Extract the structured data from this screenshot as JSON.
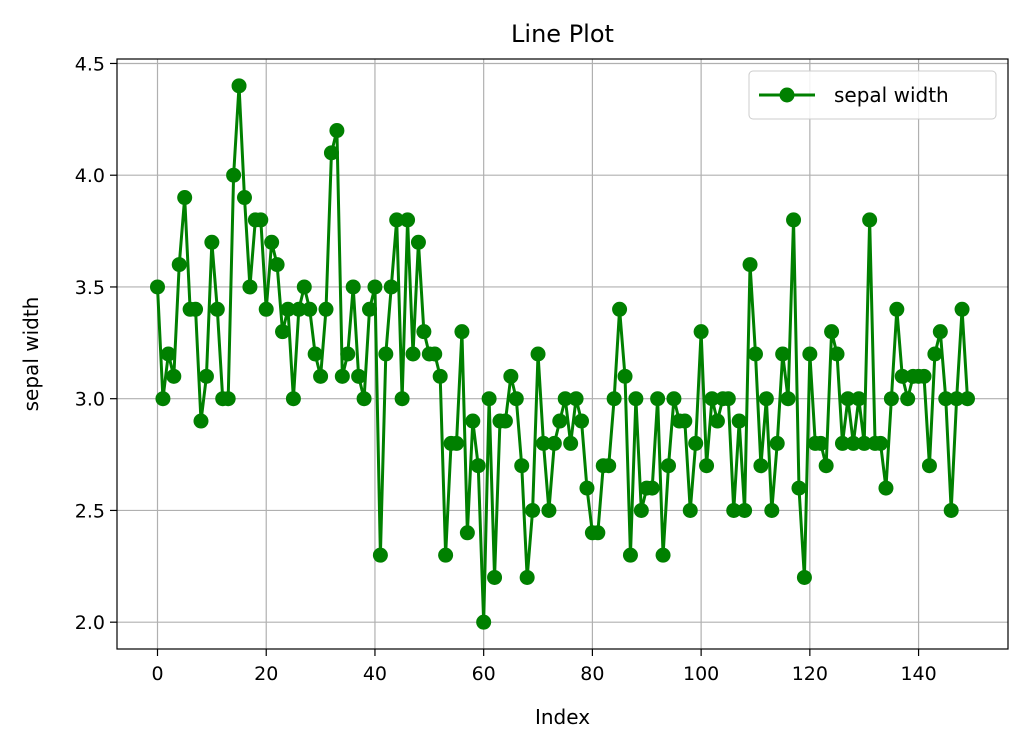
{
  "chart_data": {
    "type": "line",
    "title": "Line Plot",
    "xlabel": "Index",
    "ylabel": "sepal width",
    "xlim": [
      -7.45,
      156.45
    ],
    "ylim": [
      1.88,
      4.52
    ],
    "xticks": [
      0,
      20,
      40,
      60,
      80,
      100,
      120,
      140
    ],
    "yticks": [
      2.0,
      2.5,
      3.0,
      3.5,
      4.0,
      4.5
    ],
    "ytick_labels": [
      "2.0",
      "2.5",
      "3.0",
      "3.5",
      "4.0",
      "4.5"
    ],
    "grid": true,
    "legend_position": "top-right",
    "series": [
      {
        "name": "sepal width",
        "color": "#008000",
        "marker": "circle",
        "values": [
          3.5,
          3.0,
          3.2,
          3.1,
          3.6,
          3.9,
          3.4,
          3.4,
          2.9,
          3.1,
          3.7,
          3.4,
          3.0,
          3.0,
          4.0,
          4.4,
          3.9,
          3.5,
          3.8,
          3.8,
          3.4,
          3.7,
          3.6,
          3.3,
          3.4,
          3.0,
          3.4,
          3.5,
          3.4,
          3.2,
          3.1,
          3.4,
          4.1,
          4.2,
          3.1,
          3.2,
          3.5,
          3.1,
          3.0,
          3.4,
          3.5,
          2.3,
          3.2,
          3.5,
          3.8,
          3.0,
          3.8,
          3.2,
          3.7,
          3.3,
          3.2,
          3.2,
          3.1,
          2.3,
          2.8,
          2.8,
          3.3,
          2.4,
          2.9,
          2.7,
          2.0,
          3.0,
          2.2,
          2.9,
          2.9,
          3.1,
          3.0,
          2.7,
          2.2,
          2.5,
          3.2,
          2.8,
          2.5,
          2.8,
          2.9,
          3.0,
          2.8,
          3.0,
          2.9,
          2.6,
          2.4,
          2.4,
          2.7,
          2.7,
          3.0,
          3.4,
          3.1,
          2.3,
          3.0,
          2.5,
          2.6,
          2.6,
          3.0,
          2.3,
          2.7,
          3.0,
          2.9,
          2.9,
          2.5,
          2.8,
          3.3,
          2.7,
          3.0,
          2.9,
          3.0,
          3.0,
          2.5,
          2.9,
          2.5,
          3.6,
          3.2,
          2.7,
          3.0,
          2.5,
          2.8,
          3.2,
          3.0,
          3.8,
          2.6,
          2.2,
          3.2,
          2.8,
          2.8,
          2.7,
          3.3,
          3.2,
          2.8,
          3.0,
          2.8,
          3.0,
          2.8,
          3.8,
          2.8,
          2.8,
          2.6,
          3.0,
          3.4,
          3.1,
          3.0,
          3.1,
          3.1,
          3.1,
          2.7,
          3.2,
          3.3,
          3.0,
          2.5,
          3.0,
          3.4,
          3.0
        ]
      }
    ]
  }
}
